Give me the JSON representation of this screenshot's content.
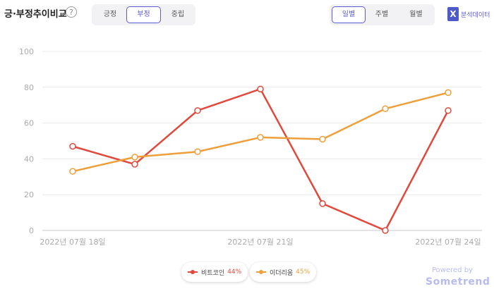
{
  "header": {
    "title": "긍·부정추이비교",
    "help_label": "?",
    "sentiment_tabs": [
      "긍정",
      "부정",
      "중립"
    ],
    "sentiment_active": "부정",
    "period_tabs": [
      "일별",
      "주별",
      "월별"
    ],
    "period_active": "일별",
    "export_icon": "excel-icon",
    "export_label": "분석데이터"
  },
  "chart_data": {
    "type": "line",
    "x": [
      "2022-07-18",
      "2022-07-19",
      "2022-07-20",
      "2022-07-21",
      "2022-07-22",
      "2022-07-23",
      "2022-07-24"
    ],
    "tick_labels": [
      {
        "x": "2022-07-18",
        "label": "2022년 07월 18일"
      },
      {
        "x": "2022-07-21",
        "label": "2022년 07월 21일"
      },
      {
        "x": "2022-07-24",
        "label": "2022년 07월 24일"
      }
    ],
    "yticks": [
      0,
      20,
      40,
      60,
      80,
      100
    ],
    "ylim": [
      0,
      100
    ],
    "grid": true,
    "legend_position": "bottom",
    "series": [
      {
        "name": "비트코인",
        "pct": "44%",
        "color": "#e0493c",
        "values": [
          47,
          37,
          67,
          79,
          15,
          0,
          67
        ]
      },
      {
        "name": "이더리움",
        "pct": "45%",
        "color": "#ef9f3a",
        "values": [
          33,
          41,
          44,
          52,
          51,
          68,
          77
        ]
      }
    ]
  },
  "footer": {
    "powered_label": "Powered by",
    "brand_label": "Sometrend"
  }
}
